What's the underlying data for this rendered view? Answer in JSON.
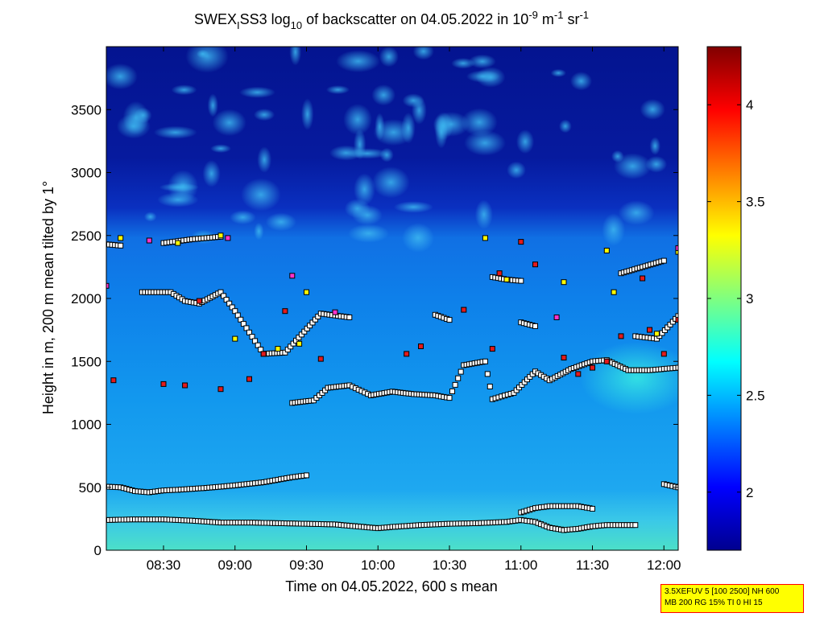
{
  "chart_data": {
    "type": "heatmap",
    "title": "SWEX_ISS3 log10 of backscatter on 04.05.2022 in 10-9 m-1 sr-1",
    "title_parts": {
      "pre": "SWEX",
      "sub1": "I",
      "mid": "SS3 log",
      "sub2": "10",
      "after": " of backscatter on 04.05.2022 in 10",
      "sup1": "-9",
      "m": " m",
      "sup2": "-1",
      "sr": " sr",
      "sup3": "-1"
    },
    "xlabel": "Time on 04.05.2022, 600 s mean",
    "ylabel": "Height in m, 200 m mean tilted by 1°",
    "x_ticks": [
      "08:30",
      "09:00",
      "09:30",
      "10:00",
      "10:30",
      "11:00",
      "11:30",
      "12:00"
    ],
    "x_tick_hours": [
      8.5,
      9.0,
      9.5,
      10.0,
      10.5,
      11.0,
      11.5,
      12.0
    ],
    "xlim_hours": [
      8.1,
      12.1
    ],
    "y_ticks": [
      "0",
      "500",
      "1000",
      "1500",
      "2000",
      "2500",
      "3000",
      "3500"
    ],
    "y_tick_values": [
      0,
      500,
      1000,
      1500,
      2000,
      2500,
      3000,
      3500
    ],
    "ylim": [
      0,
      4000
    ],
    "colorbar": {
      "ticks": [
        "2",
        "2.5",
        "3",
        "3.5",
        "4"
      ],
      "tick_values": [
        2,
        2.5,
        3,
        3.5,
        4
      ],
      "range": [
        1.7,
        4.3
      ],
      "colormap": "jet"
    },
    "layers": [
      {
        "name": "surface-layer",
        "marker_fill": "#ffffff",
        "points": [
          [
            8.1,
            240
          ],
          [
            8.3,
            245
          ],
          [
            8.5,
            245
          ],
          [
            8.7,
            235
          ],
          [
            8.9,
            220
          ],
          [
            9.1,
            220
          ],
          [
            9.3,
            215
          ],
          [
            9.5,
            210
          ],
          [
            9.7,
            205
          ],
          [
            9.9,
            185
          ],
          [
            10.0,
            175
          ],
          [
            10.1,
            185
          ],
          [
            10.3,
            200
          ],
          [
            10.5,
            210
          ],
          [
            10.7,
            215
          ],
          [
            10.9,
            225
          ],
          [
            11.0,
            240
          ],
          [
            11.1,
            225
          ],
          [
            11.2,
            180
          ],
          [
            11.3,
            160
          ],
          [
            11.4,
            170
          ],
          [
            11.5,
            190
          ],
          [
            11.6,
            200
          ],
          [
            11.8,
            200
          ]
        ]
      },
      {
        "name": "aerosol-layer-top",
        "marker_fill": "#ffffff",
        "points": [
          [
            11.0,
            300
          ],
          [
            11.1,
            335
          ],
          [
            11.2,
            350
          ],
          [
            11.3,
            350
          ],
          [
            11.4,
            350
          ],
          [
            11.5,
            330
          ]
        ]
      },
      {
        "name": "lower-layer",
        "marker_fill": "#ffffff",
        "points": [
          [
            8.1,
            505
          ],
          [
            8.2,
            500
          ],
          [
            8.3,
            470
          ],
          [
            8.4,
            460
          ],
          [
            8.5,
            475
          ],
          [
            8.6,
            480
          ],
          [
            8.8,
            495
          ],
          [
            9.0,
            515
          ],
          [
            9.2,
            540
          ],
          [
            9.4,
            580
          ],
          [
            9.5,
            595
          ],
          [
            12.0,
            525
          ],
          [
            12.1,
            500
          ]
        ]
      },
      {
        "name": "boundary-layer-top",
        "marker_fill": "#ffffff",
        "points": [
          [
            9.4,
            1170
          ],
          [
            9.55,
            1190
          ],
          [
            9.65,
            1290
          ],
          [
            9.8,
            1310
          ],
          [
            9.95,
            1230
          ],
          [
            10.1,
            1260
          ],
          [
            10.25,
            1240
          ],
          [
            10.4,
            1230
          ],
          [
            10.5,
            1210
          ],
          [
            10.6,
            1470
          ],
          [
            10.75,
            1500
          ],
          [
            10.8,
            1200
          ],
          [
            10.95,
            1250
          ],
          [
            11.1,
            1420
          ],
          [
            11.2,
            1350
          ],
          [
            11.35,
            1440
          ],
          [
            11.5,
            1500
          ],
          [
            11.6,
            1510
          ],
          [
            11.75,
            1430
          ],
          [
            11.9,
            1430
          ],
          [
            12.1,
            1450
          ]
        ]
      },
      {
        "name": "cloud-base-black",
        "marker_fill": "#ffffff",
        "points": [
          [
            8.35,
            2050
          ],
          [
            8.55,
            2050
          ],
          [
            8.65,
            1980
          ],
          [
            8.75,
            1960
          ],
          [
            8.9,
            2050
          ],
          [
            9.0,
            1900
          ],
          [
            9.2,
            1560
          ],
          [
            9.35,
            1570
          ],
          [
            9.6,
            1880
          ],
          [
            9.8,
            1850
          ],
          [
            10.4,
            1870
          ],
          [
            10.5,
            1830
          ],
          [
            11.0,
            1810
          ],
          [
            11.1,
            1780
          ],
          [
            11.8,
            1700
          ],
          [
            11.95,
            1680
          ],
          [
            12.1,
            1860
          ],
          [
            11.7,
            2200
          ],
          [
            11.85,
            2250
          ],
          [
            12.0,
            2300
          ]
        ]
      },
      {
        "name": "cloud-base-upper",
        "marker_fill": "#ffffff",
        "points": [
          [
            8.1,
            2430
          ],
          [
            8.2,
            2420
          ],
          [
            8.5,
            2440
          ],
          [
            8.7,
            2470
          ],
          [
            8.8,
            2480
          ],
          [
            8.9,
            2490
          ],
          [
            10.8,
            2170
          ],
          [
            10.9,
            2150
          ],
          [
            11.0,
            2140
          ]
        ]
      },
      {
        "name": "red-markers",
        "marker_fill": "#e31a1c",
        "points": [
          [
            8.15,
            1350
          ],
          [
            8.5,
            1320
          ],
          [
            8.65,
            1310
          ],
          [
            8.9,
            1280
          ],
          [
            9.1,
            1360
          ],
          [
            9.2,
            1560
          ],
          [
            9.6,
            1520
          ],
          [
            10.2,
            1560
          ],
          [
            10.3,
            1620
          ],
          [
            10.6,
            1910
          ],
          [
            10.8,
            1600
          ],
          [
            10.85,
            2200
          ],
          [
            11.0,
            2450
          ],
          [
            11.1,
            2270
          ],
          [
            11.3,
            1530
          ],
          [
            11.4,
            1400
          ],
          [
            11.5,
            1450
          ],
          [
            11.6,
            1500
          ],
          [
            11.7,
            1700
          ],
          [
            11.9,
            1750
          ],
          [
            12.0,
            1560
          ],
          [
            12.1,
            1830
          ],
          [
            11.85,
            2160
          ],
          [
            8.75,
            1980
          ],
          [
            9.35,
            1900
          ]
        ]
      },
      {
        "name": "yellow-markers",
        "marker_fill": "#ffff00",
        "points": [
          [
            8.2,
            2480
          ],
          [
            8.6,
            2440
          ],
          [
            8.9,
            2500
          ],
          [
            9.0,
            1680
          ],
          [
            9.3,
            1600
          ],
          [
            9.45,
            1640
          ],
          [
            9.5,
            2050
          ],
          [
            10.75,
            2480
          ],
          [
            10.9,
            2150
          ],
          [
            11.3,
            2130
          ],
          [
            11.6,
            2380
          ],
          [
            11.65,
            2050
          ],
          [
            11.95,
            1720
          ],
          [
            12.1,
            2370
          ]
        ]
      },
      {
        "name": "magenta-markers",
        "marker_fill": "#ff33cc",
        "points": [
          [
            8.1,
            2100
          ],
          [
            8.4,
            2460
          ],
          [
            8.95,
            2480
          ],
          [
            9.4,
            2180
          ],
          [
            9.7,
            1890
          ],
          [
            11.25,
            1850
          ],
          [
            12.1,
            2400
          ]
        ]
      }
    ]
  },
  "info_box": {
    "line1": "3.5XEFUV 5 [100 2500] NH 600",
    "line2": "MB 200 RG 15% TI 0 HI 15"
  },
  "colors": {
    "background": "#ffffff",
    "frame": "#000000",
    "info_box_fill": "#ffff00",
    "info_box_border": "#ff0000"
  }
}
